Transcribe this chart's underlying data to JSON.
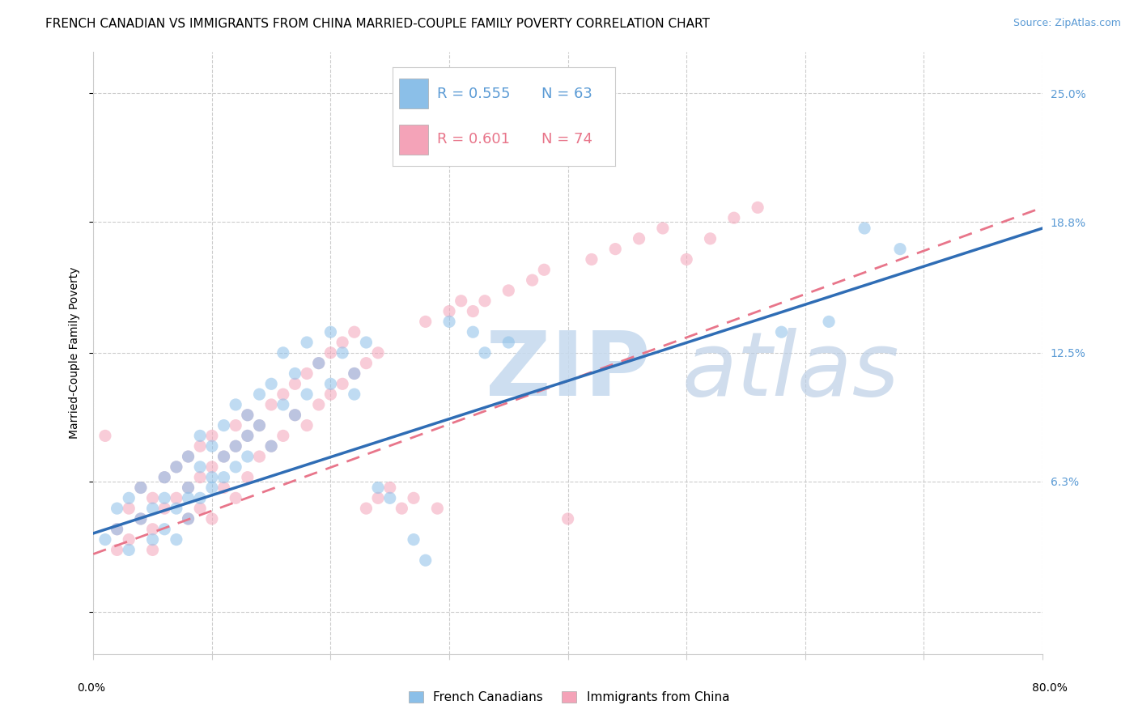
{
  "title": "FRENCH CANADIAN VS IMMIGRANTS FROM CHINA MARRIED-COUPLE FAMILY POVERTY CORRELATION CHART",
  "source": "Source: ZipAtlas.com",
  "ylabel": "Married-Couple Family Poverty",
  "ytick_values": [
    0.0,
    6.3,
    12.5,
    18.8,
    25.0
  ],
  "xmin": 0.0,
  "xmax": 80.0,
  "ymin": -2.0,
  "ymax": 27.0,
  "legend_blue_r": "R = 0.555",
  "legend_blue_n": "N = 63",
  "legend_pink_r": "R = 0.601",
  "legend_pink_n": "N = 74",
  "blue_color": "#8BBFE8",
  "pink_color": "#F4A3B8",
  "blue_line_color": "#2F6DB5",
  "pink_line_color": "#E8758A",
  "watermark_color": "#C5D9EE",
  "background_color": "#ffffff",
  "title_fontsize": 11,
  "axis_label_fontsize": 10,
  "tick_fontsize": 10,
  "legend_fontsize": 12,
  "source_fontsize": 9,
  "scatter_size": 120,
  "scatter_alpha": 0.55,
  "blue_line_start_y": 3.8,
  "blue_line_end_y": 18.5,
  "pink_line_start_y": 2.8,
  "pink_line_end_y": 19.5,
  "blue_scatter_x": [
    1,
    2,
    2,
    3,
    3,
    4,
    4,
    5,
    5,
    6,
    6,
    6,
    7,
    7,
    7,
    8,
    8,
    8,
    8,
    9,
    9,
    9,
    10,
    10,
    10,
    11,
    11,
    11,
    12,
    12,
    12,
    13,
    13,
    13,
    14,
    14,
    15,
    15,
    16,
    16,
    17,
    17,
    18,
    18,
    19,
    20,
    20,
    21,
    22,
    22,
    23,
    24,
    25,
    27,
    28,
    30,
    32,
    33,
    35,
    58,
    62,
    65,
    68
  ],
  "blue_scatter_y": [
    3.5,
    4.0,
    5.0,
    3.0,
    5.5,
    4.5,
    6.0,
    5.0,
    3.5,
    5.5,
    6.5,
    4.0,
    5.0,
    7.0,
    3.5,
    6.0,
    7.5,
    5.5,
    4.5,
    7.0,
    8.5,
    5.5,
    6.5,
    8.0,
    6.0,
    7.5,
    9.0,
    6.5,
    8.0,
    10.0,
    7.0,
    9.5,
    8.5,
    7.5,
    10.5,
    9.0,
    11.0,
    8.0,
    12.5,
    10.0,
    9.5,
    11.5,
    13.0,
    10.5,
    12.0,
    11.0,
    13.5,
    12.5,
    11.5,
    10.5,
    13.0,
    6.0,
    5.5,
    3.5,
    2.5,
    14.0,
    13.5,
    12.5,
    13.0,
    13.5,
    14.0,
    18.5,
    17.5
  ],
  "pink_scatter_x": [
    1,
    2,
    2,
    3,
    3,
    4,
    4,
    5,
    5,
    5,
    6,
    6,
    7,
    7,
    8,
    8,
    8,
    9,
    9,
    9,
    10,
    10,
    10,
    11,
    11,
    12,
    12,
    12,
    13,
    13,
    13,
    14,
    14,
    15,
    15,
    16,
    16,
    17,
    17,
    18,
    18,
    19,
    19,
    20,
    20,
    21,
    21,
    22,
    22,
    23,
    23,
    24,
    24,
    25,
    26,
    27,
    28,
    29,
    30,
    31,
    32,
    33,
    35,
    37,
    38,
    40,
    42,
    44,
    46,
    48,
    50,
    52,
    54,
    56
  ],
  "pink_scatter_y": [
    8.5,
    3.0,
    4.0,
    3.5,
    5.0,
    4.5,
    6.0,
    4.0,
    5.5,
    3.0,
    5.0,
    6.5,
    5.5,
    7.0,
    4.5,
    6.0,
    7.5,
    5.0,
    6.5,
    8.0,
    4.5,
    7.0,
    8.5,
    6.0,
    7.5,
    5.5,
    8.0,
    9.0,
    6.5,
    8.5,
    9.5,
    7.5,
    9.0,
    8.0,
    10.0,
    8.5,
    10.5,
    9.5,
    11.0,
    9.0,
    11.5,
    10.0,
    12.0,
    10.5,
    12.5,
    11.0,
    13.0,
    11.5,
    13.5,
    12.0,
    5.0,
    12.5,
    5.5,
    6.0,
    5.0,
    5.5,
    14.0,
    5.0,
    14.5,
    15.0,
    14.5,
    15.0,
    15.5,
    16.0,
    16.5,
    4.5,
    17.0,
    17.5,
    18.0,
    18.5,
    17.0,
    18.0,
    19.0,
    19.5
  ]
}
